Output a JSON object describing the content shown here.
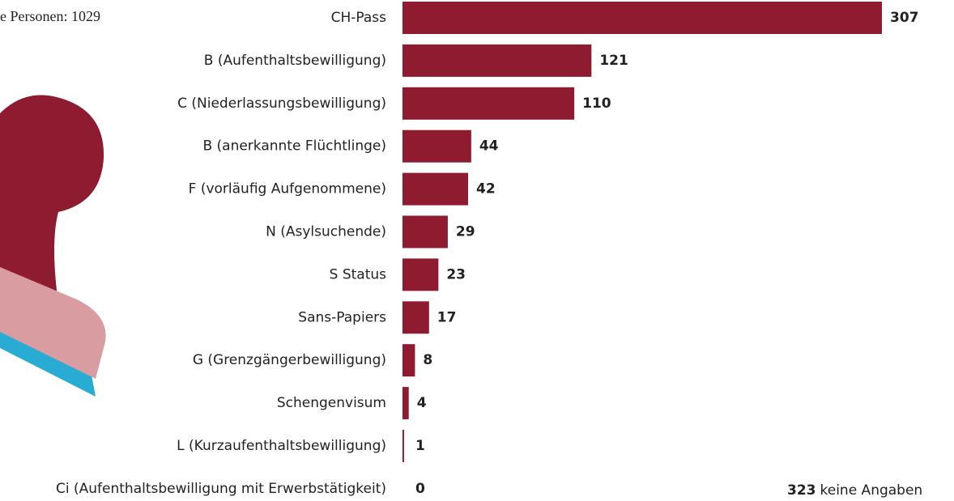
{
  "chart_data": {
    "type": "bar",
    "orientation": "horizontal",
    "note": "e Personen: 1029",
    "categories": [
      "CH-Pass",
      "B (Aufenthaltsbewilligung)",
      "C (Niederlassungsbewilligung)",
      "B (anerkannte Flüchtlinge)",
      "F (vorläufig Aufgenommene)",
      "N (Asylsuchende)",
      "S Status",
      "Sans-Papiers",
      "G (Grenzgängerbewilligung)",
      "Schengenvisum",
      "L (Kurzaufenthaltsbewilligung)",
      "Ci (Aufenthaltsbewilligung mit Erwerbstätigkeit)"
    ],
    "values": [
      307,
      121,
      110,
      44,
      42,
      29,
      23,
      17,
      8,
      4,
      1,
      0
    ],
    "color": "#8e1b30",
    "no_answer": {
      "count": 323,
      "label": "keine Angaben"
    }
  }
}
